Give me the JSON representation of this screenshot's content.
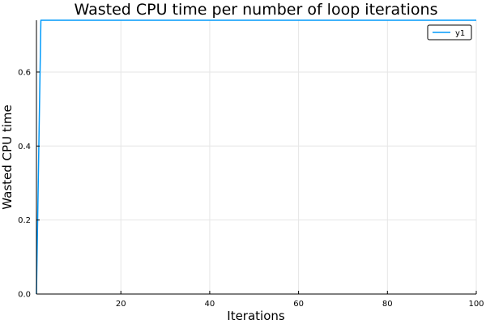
{
  "chart_data": {
    "type": "line",
    "title": "Wasted CPU time per number of loop iterations",
    "xlabel": "Iterations",
    "ylabel": "Wasted CPU time",
    "xlim": [
      1,
      100
    ],
    "ylim": [
      0,
      0.74
    ],
    "x_ticks": [
      20,
      40,
      60,
      80,
      100
    ],
    "y_ticks": [
      0.0,
      0.2,
      0.4,
      0.6
    ],
    "x_tick_labels": [
      "20",
      "40",
      "60",
      "80",
      "100"
    ],
    "y_tick_labels": [
      "0.0",
      "0.2",
      "0.4",
      "0.6"
    ],
    "grid": true,
    "legend_position": "top-right",
    "series": [
      {
        "name": "y1",
        "color": "#009AFA",
        "x": [
          1,
          2,
          3,
          4,
          5,
          10,
          20,
          30,
          40,
          50,
          60,
          70,
          80,
          90,
          100
        ],
        "y": [
          0.0,
          0.74,
          0.74,
          0.74,
          0.74,
          0.74,
          0.74,
          0.74,
          0.74,
          0.74,
          0.74,
          0.74,
          0.74,
          0.74,
          0.74
        ]
      }
    ]
  }
}
